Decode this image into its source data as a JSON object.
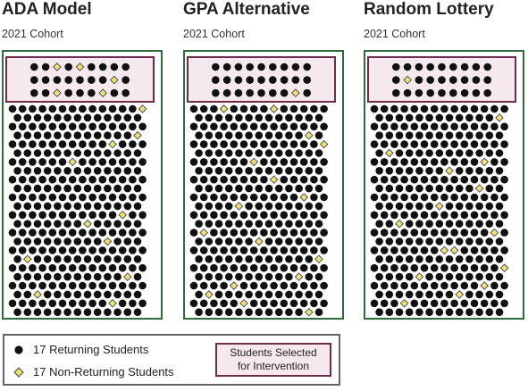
{
  "colors": {
    "returning": "#111111",
    "non_returning": "#eee17a",
    "non_returning_stroke": "#444444",
    "cohort_border": "#2f6b3c",
    "selected_border": "#6e2c4b",
    "selected_fill": "#f5e9ee"
  },
  "panels": [
    {
      "title": "ADA Model",
      "subtitle": "2021 Cohort",
      "selected": [
        [
          0,
          2
        ],
        [
          0,
          4
        ],
        [
          1,
          7
        ],
        [
          2,
          2
        ],
        [
          2,
          6
        ]
      ],
      "main": [
        [
          0,
          13
        ],
        [
          3,
          12
        ],
        [
          4,
          10
        ],
        [
          6,
          6
        ],
        [
          9,
          13
        ],
        [
          12,
          11
        ],
        [
          13,
          7
        ],
        [
          15,
          9
        ],
        [
          17,
          1
        ],
        [
          19,
          11
        ],
        [
          21,
          2
        ],
        [
          22,
          10
        ]
      ]
    },
    {
      "title": "GPA Alternative",
      "subtitle": "2021 Cohort",
      "selected": [
        [
          2,
          7
        ]
      ],
      "main": [
        [
          0,
          3
        ],
        [
          0,
          8
        ],
        [
          3,
          11
        ],
        [
          4,
          13
        ],
        [
          6,
          6
        ],
        [
          8,
          8
        ],
        [
          10,
          11
        ],
        [
          11,
          4
        ],
        [
          14,
          1
        ],
        [
          15,
          6
        ],
        [
          17,
          12
        ],
        [
          19,
          10
        ],
        [
          20,
          4
        ],
        [
          21,
          1
        ],
        [
          22,
          5
        ],
        [
          23,
          11
        ]
      ]
    },
    {
      "title": "Random Lottery",
      "subtitle": "2021 Cohort",
      "selected": [
        [
          1,
          1
        ]
      ],
      "main": [
        [
          1,
          12
        ],
        [
          5,
          1
        ],
        [
          6,
          11
        ],
        [
          7,
          7
        ],
        [
          9,
          10
        ],
        [
          11,
          6
        ],
        [
          13,
          2
        ],
        [
          14,
          12
        ],
        [
          16,
          7
        ],
        [
          18,
          13
        ],
        [
          19,
          4
        ],
        [
          20,
          11
        ],
        [
          22,
          3
        ],
        [
          23,
          13
        ],
        [
          16,
          8
        ],
        [
          21,
          8
        ]
      ]
    }
  ],
  "legend": {
    "returning_label": "17 Returning Students",
    "non_returning_label": "17 Non-Returning Students",
    "selected_line1": "Students Selected",
    "selected_line2": "for Intervention"
  }
}
